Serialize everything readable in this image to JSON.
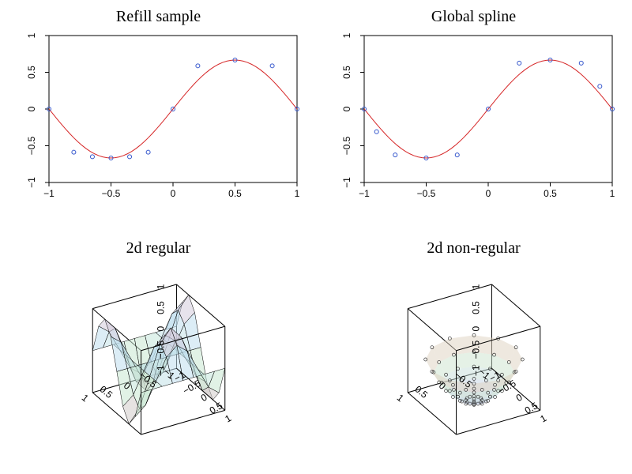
{
  "layout": {
    "figure_width": 800,
    "figure_height": 600,
    "rows": 2,
    "cols": 2,
    "background_color": "#ffffff",
    "title_fontsize": 20,
    "title_fontfamily": "Georgia",
    "tick_fontsize": 12
  },
  "panels": {
    "top_left": {
      "title": "Refill sample",
      "type": "line+scatter",
      "xlim": [
        -1,
        1
      ],
      "ylim": [
        -1,
        1
      ],
      "xticks": [
        -1,
        -0.5,
        0,
        0.5,
        1
      ],
      "yticks": [
        -1,
        -0.5,
        0,
        0.5,
        1
      ],
      "xtick_labels": [
        "−1",
        "−0.5",
        "0",
        "0.5",
        "1"
      ],
      "ytick_labels": [
        "−1",
        "−0.5",
        "0",
        "0.5",
        "1"
      ],
      "curve_color": "#d62728",
      "marker_color": "#3355cc",
      "marker_radius": 2.5,
      "curve": {
        "function": "sin(pi*x)",
        "samples": 60,
        "xmin": -1,
        "xmax": 1
      },
      "points_x": [
        -1,
        -0.8,
        -0.65,
        -0.5,
        -0.35,
        -0.2,
        0,
        0.2,
        0.5,
        0.8,
        1
      ],
      "points_y": [
        0,
        -0.588,
        -0.649,
        -0.667,
        -0.649,
        -0.588,
        0,
        0.588,
        0.667,
        0.588,
        0
      ],
      "box": true,
      "axis_color": "#000000"
    },
    "top_right": {
      "title": "Global spline",
      "type": "line+scatter",
      "xlim": [
        -1,
        1
      ],
      "ylim": [
        -1,
        1
      ],
      "xticks": [
        -1,
        -0.5,
        0,
        0.5,
        1
      ],
      "yticks": [
        -1,
        -0.5,
        0,
        0.5,
        1
      ],
      "xtick_labels": [
        "−1",
        "−0.5",
        "0",
        "0.5",
        "1"
      ],
      "ytick_labels": [
        "−1",
        "−0.5",
        "0",
        "0.5",
        "1"
      ],
      "curve_color": "#d62728",
      "marker_color": "#3355cc",
      "marker_radius": 2.5,
      "curve": {
        "function": "sin(pi*x)",
        "samples": 60,
        "xmin": -1,
        "xmax": 1
      },
      "points_x": [
        -1,
        -0.9,
        -0.75,
        -0.5,
        -0.25,
        0,
        0.25,
        0.5,
        0.75,
        0.9,
        1
      ],
      "points_y": [
        0,
        -0.309,
        -0.625,
        -0.667,
        -0.625,
        0,
        0.625,
        0.667,
        0.625,
        0.309,
        0
      ],
      "box": true,
      "axis_color": "#000000"
    },
    "bottom_left": {
      "title": "2d regular",
      "type": "surface3d",
      "xlim": [
        -1,
        1
      ],
      "ylim": [
        -1,
        1
      ],
      "zlim": [
        -1,
        1
      ],
      "xticks": [
        -1,
        -0.5,
        0,
        0.5,
        1
      ],
      "yticks": [
        -1,
        -0.5,
        0,
        0.5,
        1
      ],
      "zticks": [
        -1,
        -0.5,
        0,
        0.5,
        1
      ],
      "ztick_labels": [
        "−1",
        "−0.5",
        "0",
        "0.5",
        "1"
      ],
      "tick_label_short": [
        "−1",
        "−0.5",
        "0",
        "0.5",
        "1"
      ],
      "surface_function": "sin(pi*x)*cos(pi*y)",
      "grid_n": 9,
      "colormap_low": "#d8b8c8",
      "colormap_mid1": "#c8e8d0",
      "colormap_mid2": "#c0dff0",
      "colormap_high": "#e0c0d0",
      "surface_opacity": 0.55,
      "wireframe_color": "#000000",
      "box_color": "#000000",
      "azimuth": -60,
      "elevation": 30
    },
    "bottom_right": {
      "title": "2d non-regular",
      "type": "surface3d+scatter3d",
      "xlim": [
        -1,
        1
      ],
      "ylim": [
        -1,
        1
      ],
      "zlim": [
        -1,
        1
      ],
      "xticks": [
        -1,
        -0.5,
        0,
        0.5,
        1
      ],
      "yticks": [
        -1,
        -0.5,
        0,
        0.5,
        1
      ],
      "zticks": [
        -1,
        -0.5,
        0,
        0.5,
        1
      ],
      "ztick_labels": [
        "−1",
        "−0.5",
        "0",
        "0.5",
        "1"
      ],
      "tick_label_short": [
        "−1",
        "−0.5",
        "0",
        "0.5",
        "1"
      ],
      "surface_function": "x^2+y^2-1",
      "radial_rings": 7,
      "radial_spokes": 12,
      "colormap_low": "#c0c8f0",
      "colormap_mid": "#c8e8d0",
      "colormap_high": "#e8c8b8",
      "surface_opacity": 0.5,
      "scatter_color": "#222222",
      "scatter_radius": 2.0,
      "box_color": "#000000",
      "azimuth": -60,
      "elevation": 30
    }
  }
}
